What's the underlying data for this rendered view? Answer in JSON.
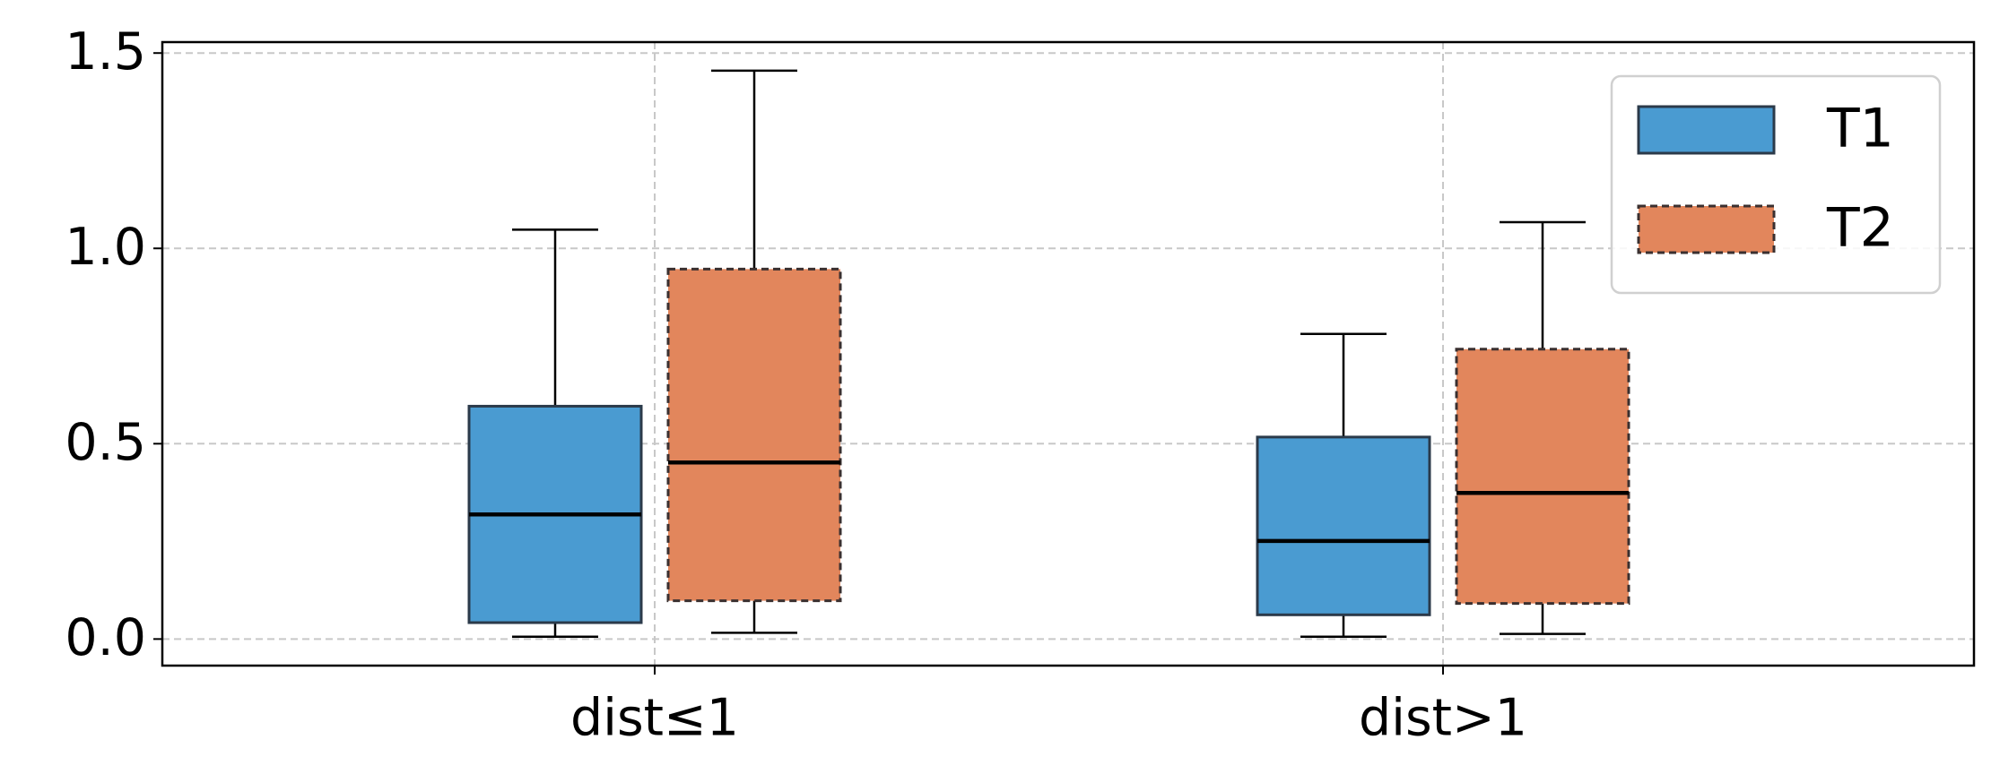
{
  "chart_data": {
    "type": "box",
    "categories": [
      "dist≤1",
      "dist>1"
    ],
    "series": [
      {
        "name": "T1",
        "color": "#4a9bd1",
        "edgecolor": "#2b3a4a",
        "linestyle": "solid",
        "whislo": [
          0.006,
          0.006
        ],
        "q1": [
          0.042,
          0.062
        ],
        "median": [
          0.319,
          0.251
        ],
        "q3": [
          0.596,
          0.517
        ],
        "whishi": [
          1.048,
          0.781
        ]
      },
      {
        "name": "T2",
        "color": "#e2865c",
        "edgecolor": "#3a3030",
        "linestyle": "dashed",
        "whislo": [
          0.016,
          0.013
        ],
        "q1": [
          0.098,
          0.091
        ],
        "median": [
          0.452,
          0.374
        ],
        "q3": [
          0.947,
          0.742
        ],
        "whishi": [
          1.455,
          1.067
        ]
      }
    ],
    "ylim": [
      -0.068,
      1.528
    ],
    "yticks": [
      {
        "value": 0,
        "label": "0.0"
      },
      0.5,
      {
        "value": 1,
        "label": "1.0"
      },
      1.5
    ],
    "grid": true,
    "legend": "upper right"
  }
}
